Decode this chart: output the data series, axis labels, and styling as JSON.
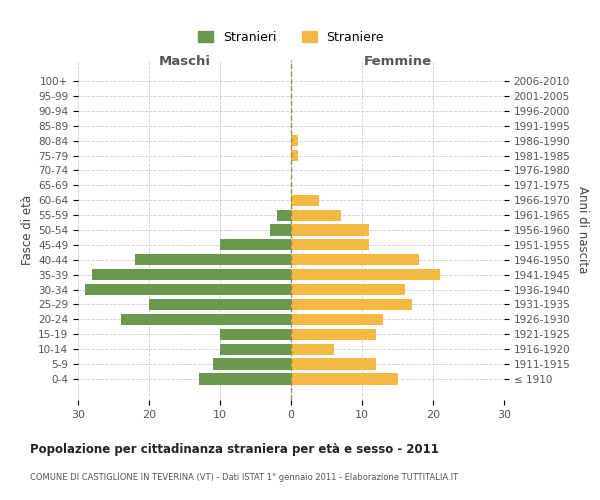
{
  "age_groups": [
    "100+",
    "95-99",
    "90-94",
    "85-89",
    "80-84",
    "75-79",
    "70-74",
    "65-69",
    "60-64",
    "55-59",
    "50-54",
    "45-49",
    "40-44",
    "35-39",
    "30-34",
    "25-29",
    "20-24",
    "15-19",
    "10-14",
    "5-9",
    "0-4"
  ],
  "birth_years": [
    "≤ 1910",
    "1911-1915",
    "1916-1920",
    "1921-1925",
    "1926-1930",
    "1931-1935",
    "1936-1940",
    "1941-1945",
    "1946-1950",
    "1951-1955",
    "1956-1960",
    "1961-1965",
    "1966-1970",
    "1971-1975",
    "1976-1980",
    "1981-1985",
    "1986-1990",
    "1991-1995",
    "1996-2000",
    "2001-2005",
    "2006-2010"
  ],
  "maschi": [
    0,
    0,
    0,
    0,
    0,
    0,
    0,
    0,
    0,
    2,
    3,
    10,
    22,
    28,
    29,
    20,
    24,
    10,
    10,
    11,
    13
  ],
  "femmine": [
    0,
    0,
    0,
    0,
    1,
    1,
    0,
    0,
    4,
    7,
    11,
    11,
    18,
    21,
    16,
    17,
    13,
    12,
    6,
    12,
    15
  ],
  "maschi_color": "#6a994e",
  "femmine_color": "#f4b942",
  "background_color": "#ffffff",
  "grid_color": "#cccccc",
  "title": "Popolazione per cittadinanza straniera per età e sesso - 2011",
  "subtitle": "COMUNE DI CASTIGLIONE IN TEVERINA (VT) - Dati ISTAT 1° gennaio 2011 - Elaborazione TUTTITALIA.IT",
  "ylabel_left": "Fasce di età",
  "ylabel_right": "Anni di nascita",
  "xlabel_left": "Maschi",
  "xlabel_right": "Femmine",
  "legend_maschi": "Stranieri",
  "legend_femmine": "Straniere",
  "xlim": 30
}
